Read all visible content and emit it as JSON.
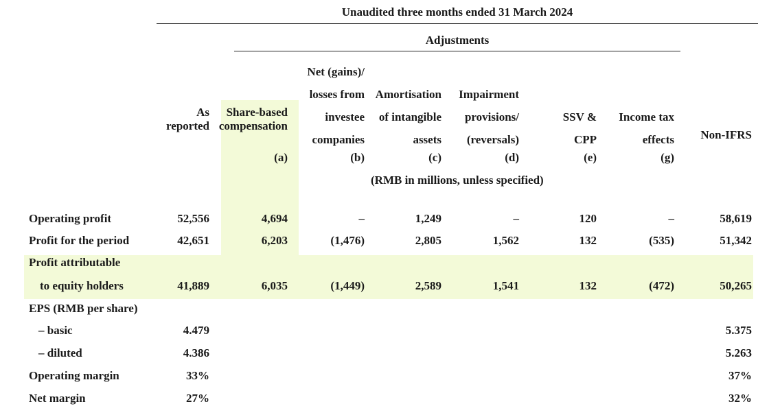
{
  "header": {
    "period_title": "Unaudited three months ended 31 March 2024",
    "adjustments_title": "Adjustments",
    "units_note": "(RMB in millions, unless specified)"
  },
  "columns": [
    {
      "lines": [
        "As",
        "reported"
      ],
      "code": ""
    },
    {
      "lines": [
        "Share-based",
        "compensation"
      ],
      "code": "(a)"
    },
    {
      "lines": [
        "Net (gains)/",
        "losses from",
        "investee",
        "companies"
      ],
      "code": "(b)"
    },
    {
      "lines": [
        "Amortisation",
        "of intangible",
        "assets"
      ],
      "code": "(c)"
    },
    {
      "lines": [
        "Impairment",
        "provisions/",
        "(reversals)"
      ],
      "code": "(d)"
    },
    {
      "lines": [
        "SSV &",
        "CPP"
      ],
      "code": "(e)"
    },
    {
      "lines": [
        "Income tax",
        "effects"
      ],
      "code": "(g)"
    },
    {
      "lines": [
        "Non-IFRS"
      ],
      "code": ""
    }
  ],
  "rows": [
    {
      "label": "Operating profit",
      "values": [
        "52,556",
        "4,694",
        "–",
        "1,249",
        "–",
        "120",
        "–",
        "58,619"
      ]
    },
    {
      "label": "Profit for the period",
      "values": [
        "42,651",
        "6,203",
        "(1,476)",
        "2,805",
        "1,562",
        "132",
        "(535)",
        "51,342"
      ]
    },
    {
      "label": "Profit attributable",
      "values": [
        "",
        "",
        "",
        "",
        "",
        "",
        "",
        ""
      ]
    },
    {
      "label": "to equity holders",
      "values": [
        "41,889",
        "6,035",
        "(1,449)",
        "2,589",
        "1,541",
        "132",
        "(472)",
        "50,265"
      ]
    },
    {
      "label": "EPS (RMB per share)",
      "values": [
        "",
        "",
        "",
        "",
        "",
        "",
        "",
        ""
      ]
    },
    {
      "label": "– basic",
      "values": [
        "4.479",
        "",
        "",
        "",
        "",
        "",
        "",
        "5.375"
      ]
    },
    {
      "label": "– diluted",
      "values": [
        "4.386",
        "",
        "",
        "",
        "",
        "",
        "",
        "5.263"
      ]
    },
    {
      "label": "Operating margin",
      "values": [
        "33%",
        "",
        "",
        "",
        "",
        "",
        "",
        "37%"
      ]
    },
    {
      "label": "Net margin",
      "values": [
        "27%",
        "",
        "",
        "",
        "",
        "",
        "",
        "32%"
      ]
    }
  ],
  "colors": {
    "highlight": "#f3fad8",
    "text": "#1a1a1a",
    "rule": "#222222"
  }
}
